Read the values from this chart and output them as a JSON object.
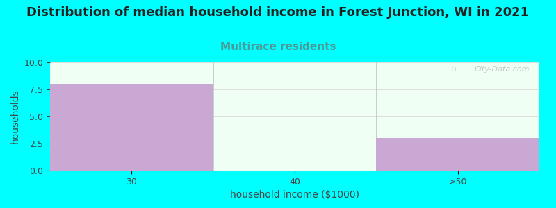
{
  "title": "Distribution of median household income in Forest Junction, WI in 2021",
  "subtitle": "Multirace residents",
  "xlabel": "household income ($1000)",
  "ylabel": "households",
  "categories": [
    "30",
    "40",
    ">50"
  ],
  "values": [
    8.0,
    0.0,
    3.0
  ],
  "bar_color": "#c9a8d4",
  "ylim": [
    0,
    10
  ],
  "yticks": [
    0,
    2.5,
    5,
    7.5,
    10
  ],
  "background_color": "#00ffff",
  "plot_bg_color": "#f0fff4",
  "title_fontsize": 13,
  "subtitle_fontsize": 11,
  "title_color": "#222222",
  "subtitle_color": "#4a9a9a",
  "axis_label_fontsize": 10,
  "tick_fontsize": 9,
  "watermark_text": "City-Data.com",
  "watermark_color": "#bbbbbb"
}
